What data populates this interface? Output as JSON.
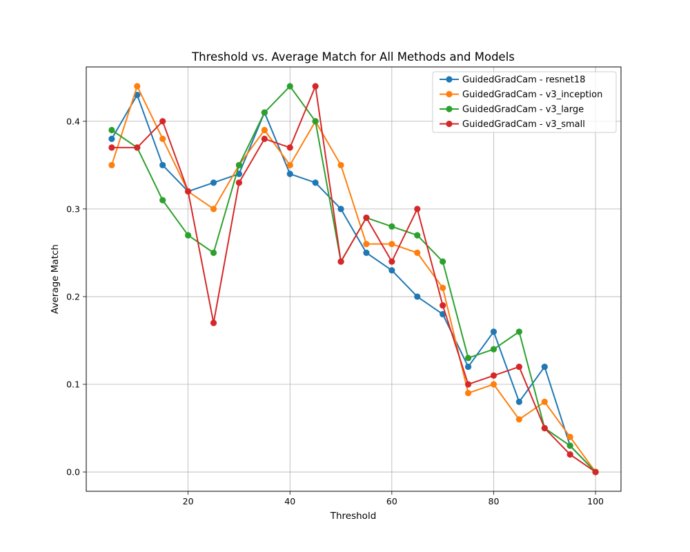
{
  "chart_data": {
    "type": "line",
    "title": "Threshold vs. Average Match for All Methods and Models",
    "xlabel": "Threshold",
    "ylabel": "Average Match",
    "xlim": [
      0,
      105
    ],
    "ylim": [
      -0.022,
      0.462
    ],
    "xticks": [
      20,
      40,
      60,
      80,
      100
    ],
    "yticks": [
      0.0,
      0.1,
      0.2,
      0.3,
      0.4
    ],
    "grid": true,
    "legend_position": "top-right",
    "x": [
      5,
      10,
      15,
      20,
      25,
      30,
      35,
      40,
      45,
      50,
      55,
      60,
      65,
      70,
      75,
      80,
      85,
      90,
      95,
      100
    ],
    "series": [
      {
        "name": "GuidedGradCam - resnet18",
        "color": "#1f77b4",
        "values": [
          0.38,
          0.43,
          0.35,
          0.32,
          0.33,
          0.34,
          0.41,
          0.34,
          0.33,
          0.3,
          0.25,
          0.23,
          0.2,
          0.18,
          0.12,
          0.16,
          0.08,
          0.12,
          0.03,
          0.0
        ]
      },
      {
        "name": "GuidedGradCam - v3_inception",
        "color": "#ff7f0e",
        "values": [
          0.35,
          0.44,
          0.38,
          0.32,
          0.3,
          0.35,
          0.39,
          0.35,
          0.4,
          0.35,
          0.26,
          0.26,
          0.25,
          0.21,
          0.09,
          0.1,
          0.06,
          0.08,
          0.04,
          0.0
        ]
      },
      {
        "name": "GuidedGradCam - v3_large",
        "color": "#2ca02c",
        "values": [
          0.39,
          0.37,
          0.31,
          0.27,
          0.25,
          0.35,
          0.41,
          0.44,
          0.4,
          0.24,
          0.29,
          0.28,
          0.27,
          0.24,
          0.13,
          0.14,
          0.16,
          0.05,
          0.03,
          0.0
        ]
      },
      {
        "name": "GuidedGradCam - v3_small",
        "color": "#d62728",
        "values": [
          0.37,
          0.37,
          0.4,
          0.32,
          0.17,
          0.33,
          0.38,
          0.37,
          0.44,
          0.24,
          0.29,
          0.24,
          0.3,
          0.19,
          0.1,
          0.11,
          0.12,
          0.05,
          0.02,
          0.0
        ]
      }
    ]
  }
}
